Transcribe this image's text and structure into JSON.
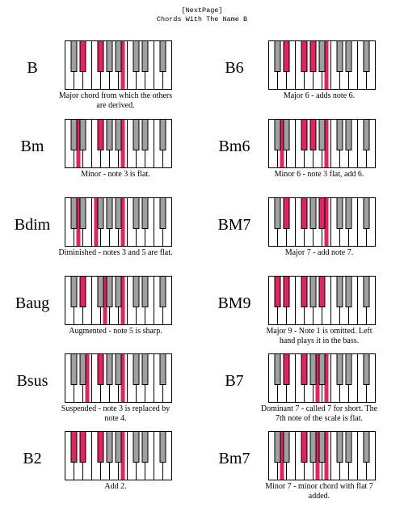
{
  "header": {
    "link": "[NextPage]",
    "title": "Chords With The Name B"
  },
  "colors": {
    "highlight": "#e0245e",
    "black_key": "#a0a0a0"
  },
  "chords": [
    {
      "name": "B",
      "desc": "Major chord from which the others are derived.",
      "keys": [
        11,
        3,
        6
      ]
    },
    {
      "name": "B6",
      "desc": "Major 6 - adds note 6.",
      "keys": [
        11,
        3,
        6,
        8
      ]
    },
    {
      "name": "Bm",
      "desc": "Minor - note 3 is flat.",
      "keys": [
        11,
        2,
        6
      ]
    },
    {
      "name": "Bm6",
      "desc": "Minor 6 - note 3 flat, add 6.",
      "keys": [
        11,
        2,
        6,
        8
      ]
    },
    {
      "name": "Bdim",
      "desc": "Diminished - notes 3 and 5 are flat.",
      "keys": [
        11,
        2,
        5
      ]
    },
    {
      "name": "BM7",
      "desc": "Major 7 - add note 7.",
      "keys": [
        11,
        3,
        6,
        10
      ]
    },
    {
      "name": "Baug",
      "desc": "Augmented - note 5 is sharp.",
      "keys": [
        11,
        3,
        7
      ]
    },
    {
      "name": "BM9",
      "desc": "Major 9 - Note 1 is omitted. Left hand plays it in the bass.",
      "keys": [
        1,
        3,
        6,
        10
      ]
    },
    {
      "name": "Bsus",
      "desc": "Suspended - note 3 is replaced by note 4.",
      "keys": [
        11,
        4,
        6
      ]
    },
    {
      "name": "B7",
      "desc": "Dominant 7 - called 7 for short. The 7th note of the scale is flat.",
      "keys": [
        11,
        3,
        6,
        9
      ]
    },
    {
      "name": "B2",
      "desc": "Add 2.",
      "keys": [
        11,
        1,
        3,
        6
      ]
    },
    {
      "name": "Bm7",
      "desc": "Minor 7 - minor chord with flat 7 added.",
      "keys": [
        11,
        2,
        6,
        9
      ]
    }
  ]
}
